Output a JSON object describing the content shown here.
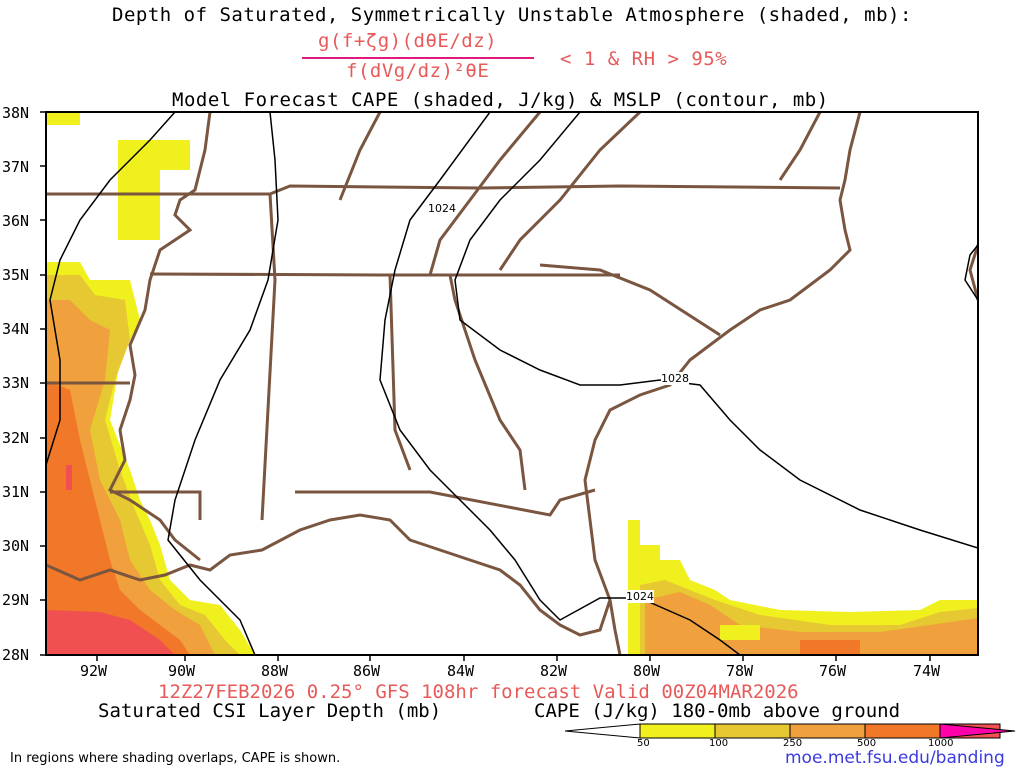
{
  "header": {
    "title": "Depth of Saturated, Symmetrically Unstable Atmosphere (shaded, mb):",
    "numerator": "g(f+ζg)(dθE/dz)",
    "denominator": "f(dVg/dz)²θE",
    "criteria": "< 1 & RH > 95%",
    "subtitle": "Model Forecast CAPE (shaded, J/kg) & MSLP (contour, mb)"
  },
  "axes": {
    "lat_labels": [
      "38N",
      "37N",
      "36N",
      "35N",
      "34N",
      "33N",
      "32N",
      "31N",
      "30N",
      "29N",
      "28N"
    ],
    "lon_labels": [
      "92W",
      "90W",
      "88W",
      "86W",
      "84W",
      "82W",
      "80W",
      "78W",
      "76W",
      "74W"
    ]
  },
  "isobar_labels": [
    "1024",
    "1028",
    "1024"
  ],
  "footer": {
    "run": "12Z27FEB2026 0.25° GFS 108hr forecast Valid 00Z04MAR2026",
    "left": "Saturated CSI Layer Depth (mb)",
    "right": "CAPE (J/kg) 180-0mb above ground",
    "note": "In regions where shading overlaps, CAPE is shown.",
    "url": "moe.met.fsu.edu/banding"
  },
  "colorbar": {
    "ticks": [
      "50",
      "100",
      "250",
      "500",
      "1000"
    ],
    "colors": {
      "c50": "#f0f01e",
      "c100": "#e6c832",
      "c250": "#f0a03c",
      "c500": "#f07828",
      "c1000": "#f05050",
      "c_high": "#ff00aa"
    }
  },
  "map_colors": {
    "border": "#7a5540",
    "isobar": "#000000",
    "frame": "#000000"
  }
}
